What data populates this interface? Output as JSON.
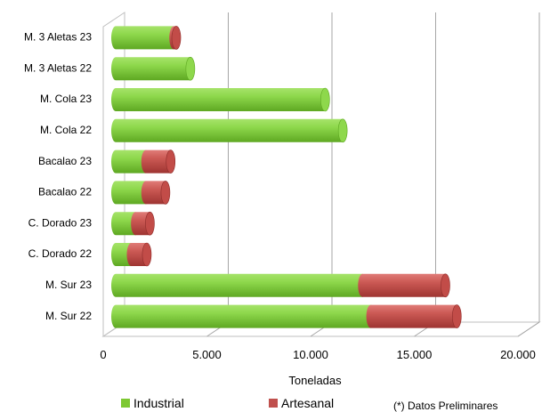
{
  "chart_data": {
    "type": "bar",
    "orientation": "horizontal",
    "stacked": true,
    "categories": [
      "M. Sur 22",
      "M. Sur 23",
      "C. Dorado 22",
      "C. Dorado 23",
      "Bacalao 22",
      "Bacalao 23",
      "M. Cola 22",
      "M. Cola 23",
      "M. 3 Aletas 22",
      "M. 3 Aletas 23"
    ],
    "series": [
      {
        "name": "Industrial",
        "color": "#7dc832",
        "values": [
          12300,
          11900,
          750,
          950,
          1450,
          1450,
          10950,
          10100,
          3600,
          2800
        ]
      },
      {
        "name": "Artesanal",
        "color": "#c0504d",
        "values": [
          4150,
          4000,
          750,
          700,
          950,
          1200,
          0,
          0,
          0,
          120
        ]
      }
    ],
    "xlabel": "Toneladas",
    "xlim": [
      0,
      20000
    ],
    "xticks": [
      "0",
      "5.000",
      "10.000",
      "15.000",
      "20.000"
    ],
    "grid": true,
    "legend_position": "bottom"
  },
  "note": "(*) Datos Preliminares"
}
